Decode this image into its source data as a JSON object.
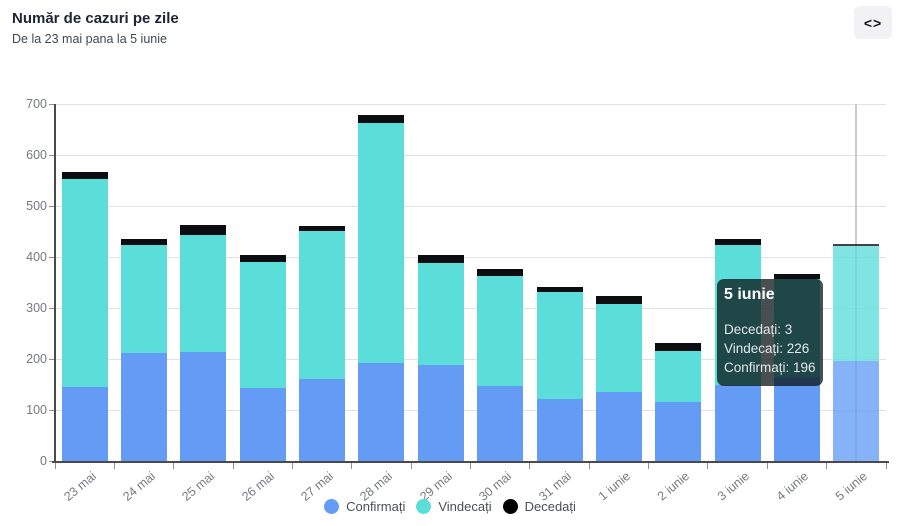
{
  "header": {
    "title": "Număr de cazuri pe zile",
    "subtitle": "De la 23 mai pana la 5 iunie",
    "code_icon": "<>"
  },
  "chart_data": {
    "type": "bar",
    "stacked": true,
    "title": "Număr de cazuri pe zile",
    "categories": [
      "23 mai",
      "24 mai",
      "25 mai",
      "26 mai",
      "27 mai",
      "28 mai",
      "29 mai",
      "30 mai",
      "31 mai",
      "1 iunie",
      "2 iunie",
      "3 iunie",
      "4 iunie",
      "5 iunie"
    ],
    "series": [
      {
        "name": "Confirmați",
        "color": "#649CF5",
        "values": [
          146,
          212,
          213,
          143,
          161,
          193,
          189,
          148,
          121,
          136,
          115,
          149,
          165,
          196
        ]
      },
      {
        "name": "Vindecați",
        "color": "#5BDDDA",
        "values": [
          406,
          211,
          230,
          248,
          290,
          470,
          199,
          214,
          210,
          172,
          101,
          275,
          192,
          226
        ]
      },
      {
        "name": "Decedați",
        "color": "#0b0d10",
        "values": [
          14,
          12,
          19,
          13,
          9,
          15,
          16,
          14,
          10,
          15,
          15,
          11,
          10,
          3
        ]
      }
    ],
    "ylim": [
      0,
      700
    ],
    "ytick_step": 100,
    "grid": true,
    "legend_position": "bottom",
    "highlighted_category": "5 iunie"
  },
  "tooltip": {
    "title": "5 iunie",
    "lines": [
      {
        "label": "Decedați",
        "value": "3"
      },
      {
        "label": "Vindecați",
        "value": "226"
      },
      {
        "label": "Confirmați",
        "value": "196"
      }
    ]
  },
  "legend": {
    "items": [
      {
        "label": "Confirmați",
        "color": "#649CF5"
      },
      {
        "label": "Vindecați",
        "color": "#5BDDDA"
      },
      {
        "label": "Decedați",
        "color": "#000000"
      }
    ]
  }
}
